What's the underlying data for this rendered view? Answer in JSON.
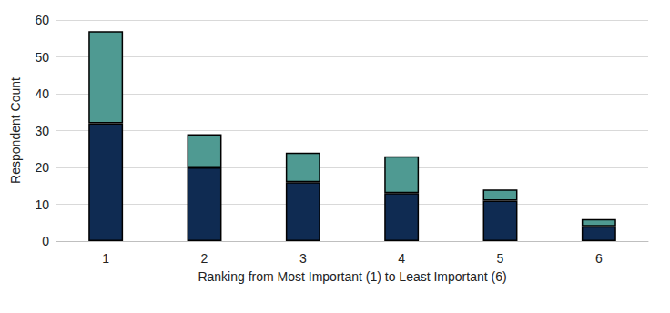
{
  "chart_data": {
    "type": "bar",
    "x_label": "Ranking from Most Important (1) to Least Important (6)",
    "y_label": "Respondent Count",
    "categories": [
      "1",
      "2",
      "3",
      "4",
      "5",
      "6"
    ],
    "series": [
      {
        "color": "#0f2b52",
        "values": [
          32,
          20,
          16,
          13,
          11,
          4
        ]
      },
      {
        "color": "#4f9a92",
        "values": [
          25,
          9,
          8,
          10,
          3,
          2
        ]
      }
    ],
    "stacked": true,
    "ylim": [
      0,
      60
    ],
    "yticks": [
      0,
      10,
      20,
      30,
      40,
      50,
      60
    ],
    "grid": true
  }
}
